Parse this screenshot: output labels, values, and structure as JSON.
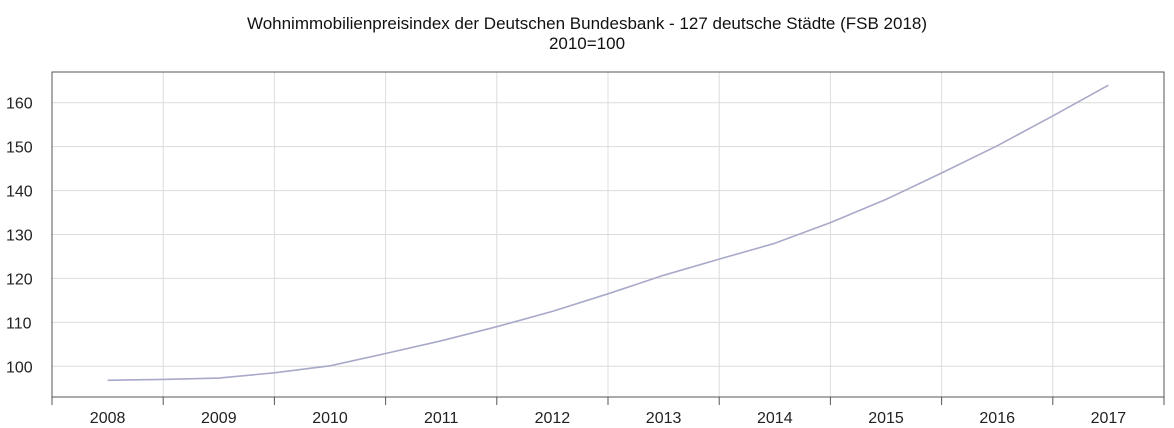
{
  "chart_data": {
    "type": "line",
    "title": "Wohnimmobilienpreisindex der Deutschen Bundesbank - 127 deutsche Städte (FSB 2018)",
    "subtitle": "2010=100",
    "xlabel": "",
    "ylabel": "",
    "x_categories": [
      "2008",
      "2009",
      "2010",
      "2011",
      "2012",
      "2013",
      "2014",
      "2015",
      "2016",
      "2017"
    ],
    "yticks": [
      100,
      110,
      120,
      130,
      140,
      150,
      160
    ],
    "ylim": [
      93,
      167
    ],
    "grid": true,
    "legend": "none",
    "line_color": "#a9a9c9",
    "series": [
      {
        "x": [
          2008.0,
          2008.5,
          2009.0,
          2009.5,
          2010.0,
          2010.5,
          2011.0,
          2011.5,
          2012.0,
          2012.5,
          2013.0,
          2013.5,
          2014.0,
          2014.5,
          2015.0,
          2015.5,
          2016.0,
          2016.5,
          2017.0
        ],
        "values": [
          96.8,
          97.0,
          97.3,
          98.5,
          100.1,
          102.9,
          105.8,
          109.0,
          112.5,
          116.5,
          120.7,
          124.4,
          128.0,
          132.7,
          138.0,
          144.0,
          150.2,
          157.0,
          164.0
        ]
      }
    ]
  }
}
